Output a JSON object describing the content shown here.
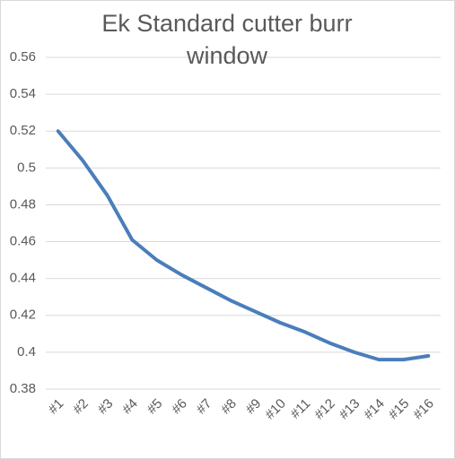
{
  "chart_data": {
    "type": "line",
    "title": "Ek Standard cutter burr window",
    "categories": [
      "#1",
      "#2",
      "#3",
      "#4",
      "#5",
      "#6",
      "#7",
      "#8",
      "#9",
      "#10",
      "#11",
      "#12",
      "#13",
      "#14",
      "#15",
      "#16"
    ],
    "values": [
      0.52,
      0.504,
      0.485,
      0.461,
      0.45,
      0.442,
      0.435,
      0.428,
      0.422,
      0.416,
      0.411,
      0.405,
      0.4,
      0.396,
      0.396,
      0.398
    ],
    "color": "#4a7ebb",
    "ylim": [
      0.38,
      0.56
    ],
    "yticks": [
      0.38,
      0.4,
      0.42,
      0.44,
      0.46,
      0.48,
      0.5,
      0.52,
      0.54,
      0.56
    ],
    "grid": true
  }
}
